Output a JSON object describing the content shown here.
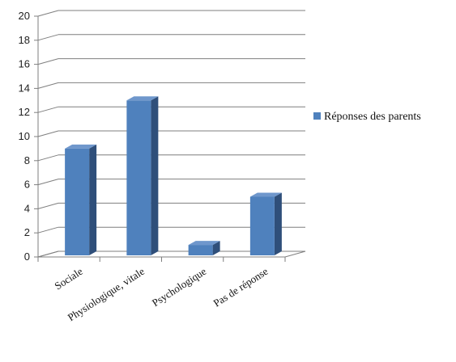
{
  "chart_data": {
    "type": "bar",
    "categories": [
      "Sociale",
      "Physiologique, vitale",
      "Psychologique",
      "Pas de réponse"
    ],
    "series": [
      {
        "name": "Réponses des parents",
        "values": [
          9,
          13,
          1,
          5
        ],
        "color": "#4f81bd"
      }
    ],
    "yticks": [
      "0",
      "2",
      "4",
      "6",
      "8",
      "10",
      "12",
      "14",
      "16",
      "18",
      "20"
    ],
    "ylim": [
      0,
      20
    ],
    "grid": true,
    "legend": "right",
    "style": "3d-column"
  }
}
